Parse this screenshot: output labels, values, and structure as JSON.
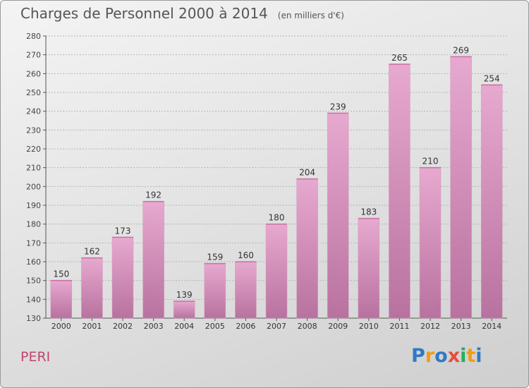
{
  "header": {
    "title": "Charges de Personnel 2000 à 2014",
    "subtitle": "(en milliers d'€)"
  },
  "footer": {
    "label": "PERI",
    "logo": "Proxiti",
    "logo_letters": [
      {
        "ch": "P",
        "color": "#2e7bc4"
      },
      {
        "ch": "r",
        "color": "#f39c12"
      },
      {
        "ch": "o",
        "color": "#2e7bc4"
      },
      {
        "ch": "x",
        "color": "#e74c3c"
      },
      {
        "ch": "i",
        "color": "#27ae60"
      },
      {
        "ch": "t",
        "color": "#f39c12"
      },
      {
        "ch": "i",
        "color": "#2e7bc4"
      }
    ]
  },
  "colors": {
    "bar_top": "#e7a9cf",
    "bar_bottom": "#b8729f",
    "grid": "#b5b5b5",
    "axis": "#555555"
  },
  "chart_data": {
    "type": "bar",
    "categories": [
      "2000",
      "2001",
      "2002",
      "2003",
      "2004",
      "2005",
      "2006",
      "2007",
      "2008",
      "2009",
      "2010",
      "2011",
      "2012",
      "2013",
      "2014"
    ],
    "values": [
      150,
      162,
      173,
      192,
      139,
      159,
      160,
      180,
      204,
      239,
      183,
      265,
      210,
      269,
      254
    ],
    "title": "Charges de Personnel 2000 à 2014",
    "ylim": [
      130,
      280
    ],
    "yticks": [
      130,
      140,
      150,
      160,
      170,
      180,
      190,
      200,
      210,
      220,
      230,
      240,
      250,
      260,
      270,
      280
    ],
    "grid": true
  }
}
